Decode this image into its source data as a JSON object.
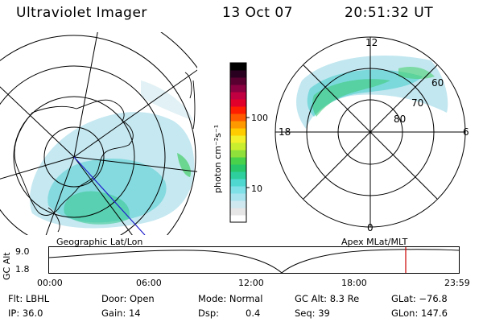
{
  "header": {
    "instrument": "Ultraviolet Imager",
    "date": "13 Oct 07",
    "time": "20:51:32 UT"
  },
  "colorbar": {
    "unit_label": "photon cm⁻²s⁻¹",
    "ticks": [
      "100",
      "10"
    ],
    "colors": [
      "#ffffff",
      "#e6e6e6",
      "#cfe8f0",
      "#a9e4ee",
      "#7fe0e8",
      "#4fd8d0",
      "#2ecf9c",
      "#27c76a",
      "#48d14a",
      "#8fe03a",
      "#c8ee2e",
      "#f2f02a",
      "#ffcc00",
      "#ff9900",
      "#ff5a00",
      "#ff1e00",
      "#e0002a",
      "#c00040",
      "#8a0040",
      "#5a0030",
      "#2a0020",
      "#000000"
    ]
  },
  "left_map": {
    "caption": "Geographic Lat/Lon"
  },
  "right_map": {
    "caption": "Apex MLat/MLT",
    "mlt_labels": {
      "top": "12",
      "left": "18",
      "right": "6",
      "bottom": "0"
    },
    "lat_labels": [
      "60",
      "70",
      "80"
    ]
  },
  "altitude_plot": {
    "axis_label": "GC Alt",
    "y_ticks": [
      "9.0",
      "1.8"
    ],
    "x_ticks": [
      "00:00",
      "06:00",
      "12:00",
      "18:00",
      "23:59"
    ],
    "current_time_color": "#cc0000"
  },
  "status": {
    "filter": "Flt: LBHL",
    "ip": "IP: 36.0",
    "door": "Door: Open",
    "gain": "Gain: 14",
    "mode": "Mode: Normal",
    "dsp_label": "Dsp:",
    "dsp_value": "0.4",
    "gc_alt": "GC Alt: 8.3 Re",
    "seq": "Seq: 39",
    "glat": "GLat: −76.8",
    "glon": "GLon: 147.6"
  }
}
